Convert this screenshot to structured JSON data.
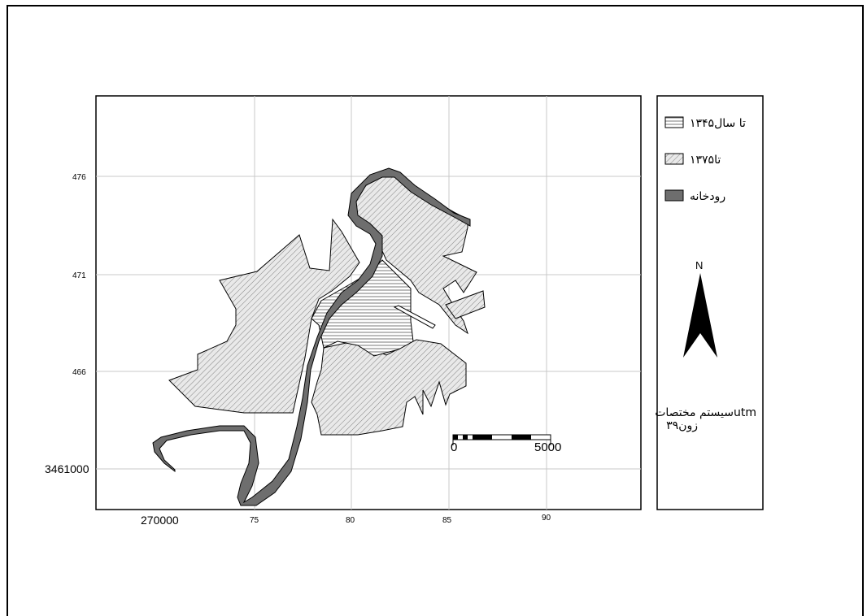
{
  "map": {
    "y_ticks": [
      "476",
      "471",
      "466",
      "3461000"
    ],
    "x_ticks": [
      "270000",
      "75",
      "80",
      "85",
      "90"
    ]
  },
  "scale_bar": {
    "start_label": "0",
    "end_label": "5000"
  },
  "legend": {
    "items": [
      {
        "label": "تا سال۱۳۴۵",
        "pattern": "horizontal-hatch"
      },
      {
        "label": "تا۱۳۷۵",
        "pattern": "diagonal-hatch"
      },
      {
        "label": "رودخانه",
        "pattern": "solid-gray"
      }
    ],
    "north_label": "N",
    "crs_line1": "سیستم مختصاتutm",
    "crs_line2": "زون۳۹"
  },
  "colors": {
    "river": "#6e6e6e",
    "area_fill": "#e9e9e9",
    "grid": "#c8c8c8"
  }
}
